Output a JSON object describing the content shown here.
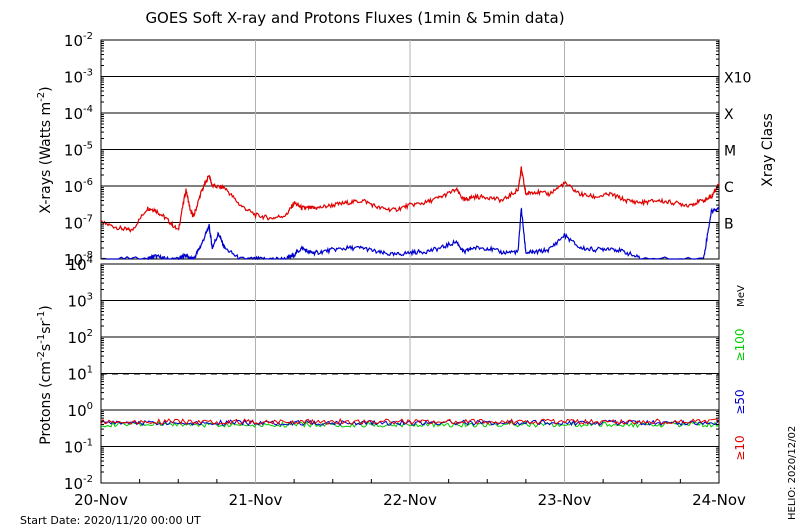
{
  "title": "GOES Soft X-ray and Protons Fluxes   (1min & 5min data)",
  "start_date": "Start Date: 2020/11/20 00:00 UT",
  "side_stamp": "HELIO: 2020/12/02",
  "colors": {
    "red": "#e00000",
    "blue": "#0000cc",
    "green": "#00cc00",
    "grid": "#b0b0b0",
    "axis": "#000000"
  },
  "chart_data": [
    {
      "type": "line",
      "name": "xray-panel",
      "ylabel_base": "X-rays (Watts m",
      "ylabel_sup": "-2",
      "ylabel_end": ")",
      "yscale": "log",
      "ylim_exp": [
        -8,
        -2
      ],
      "ytick_exps": [
        -8,
        -7,
        -6,
        -5,
        -4,
        -3,
        -2
      ],
      "xlim_days": [
        "2020-11-20",
        "2020-11-24"
      ],
      "xtick_labels": [
        "20-Nov",
        "21-Nov",
        "22-Nov",
        "23-Nov",
        "24-Nov"
      ],
      "right_axis_title": "Xray Class",
      "class_labels": [
        {
          "label": "X10",
          "exp": -3
        },
        {
          "label": "X",
          "exp": -4
        },
        {
          "label": "M",
          "exp": -5
        },
        {
          "label": "C",
          "exp": -6
        },
        {
          "label": "B",
          "exp": -7
        }
      ],
      "series": [
        {
          "color": "red",
          "day": [
            0.0,
            0.12,
            0.2,
            0.3,
            0.35,
            0.42,
            0.5,
            0.55,
            0.58,
            0.6,
            0.65,
            0.7,
            0.72,
            0.8,
            0.9,
            1.0,
            1.1,
            1.2,
            1.25,
            1.3,
            1.35,
            1.4,
            1.5,
            1.6,
            1.7,
            1.8,
            1.9,
            2.0,
            2.1,
            2.2,
            2.3,
            2.35,
            2.4,
            2.5,
            2.6,
            2.7,
            2.72,
            2.75,
            2.8,
            2.9,
            3.0,
            3.1,
            3.2,
            3.3,
            3.4,
            3.5,
            3.6,
            3.7,
            3.8,
            3.9,
            3.95,
            4.0
          ],
          "flux": [
            1e-07,
            7e-08,
            6e-08,
            2.5e-07,
            2.2e-07,
            1.3e-07,
            6e-08,
            8e-07,
            2e-07,
            1.5e-07,
            7e-07,
            2e-06,
            1e-06,
            9e-07,
            3e-07,
            1.6e-07,
            1.3e-07,
            1.6e-07,
            3.5e-07,
            2.5e-07,
            2.5e-07,
            2.5e-07,
            3e-07,
            3.5e-07,
            4e-07,
            2.5e-07,
            2.2e-07,
            3e-07,
            3.5e-07,
            5e-07,
            8e-07,
            4e-07,
            5e-07,
            5e-07,
            4e-07,
            8e-07,
            3e-06,
            6e-07,
            7e-07,
            6e-07,
            1.2e-06,
            6e-07,
            5e-07,
            6e-07,
            4e-07,
            3.5e-07,
            4e-07,
            3.5e-07,
            3e-07,
            4e-07,
            5e-07,
            1.2e-06
          ]
        },
        {
          "color": "blue",
          "day": [
            0.0,
            0.3,
            0.35,
            0.42,
            0.5,
            0.55,
            0.58,
            0.6,
            0.65,
            0.7,
            0.72,
            0.76,
            0.8,
            0.9,
            1.0,
            1.1,
            1.2,
            1.25,
            1.3,
            1.35,
            1.4,
            1.5,
            1.6,
            1.7,
            1.8,
            1.9,
            2.0,
            2.1,
            2.2,
            2.3,
            2.35,
            2.4,
            2.5,
            2.6,
            2.7,
            2.72,
            2.75,
            2.8,
            2.9,
            3.0,
            3.1,
            3.2,
            3.3,
            3.4,
            3.5,
            3.9,
            3.95,
            4.0
          ],
          "flux": [
            1e-08,
            1e-08,
            1.2e-08,
            1e-08,
            1e-08,
            1.3e-08,
            1e-08,
            1e-08,
            2.5e-08,
            8e-08,
            2e-08,
            5e-08,
            2e-08,
            1e-08,
            1e-08,
            1e-08,
            1e-08,
            1.3e-08,
            2e-08,
            1.5e-08,
            1.5e-08,
            1.8e-08,
            2e-08,
            2e-08,
            1.5e-08,
            1.3e-08,
            1.5e-08,
            1.6e-08,
            2e-08,
            3e-08,
            1.5e-08,
            2e-08,
            2e-08,
            1.5e-08,
            1.6e-08,
            2.5e-07,
            1.5e-08,
            1.5e-08,
            1.8e-08,
            4.5e-08,
            2e-08,
            1.8e-08,
            2e-08,
            1.5e-08,
            1e-08,
            1e-08,
            2e-07,
            2.5e-07
          ]
        }
      ]
    },
    {
      "type": "line",
      "name": "proton-panel",
      "ylabel_base": "Protons (cm",
      "ylabel_mid": "s",
      "ylabel_mid2": "sr",
      "ylabel_end": ")",
      "yscale": "log",
      "ylim_exp": [
        -2,
        4
      ],
      "ytick_exps": [
        -2,
        -1,
        0,
        1,
        2,
        3,
        4
      ],
      "threshold": 10,
      "xlim_days": [
        "2020-11-20",
        "2020-11-24"
      ],
      "xtick_labels": [
        "20-Nov",
        "21-Nov",
        "22-Nov",
        "23-Nov",
        "24-Nov"
      ],
      "energy_unit": "MeV",
      "channels": [
        {
          "label": "≥100",
          "color": "green"
        },
        {
          "label": "≥50",
          "color": "blue"
        },
        {
          "label": "≥10",
          "color": "red"
        }
      ],
      "series": [
        {
          "color": "green",
          "level": 0.4
        },
        {
          "color": "blue",
          "level": 0.45
        },
        {
          "color": "red",
          "level": 0.48
        }
      ]
    }
  ]
}
